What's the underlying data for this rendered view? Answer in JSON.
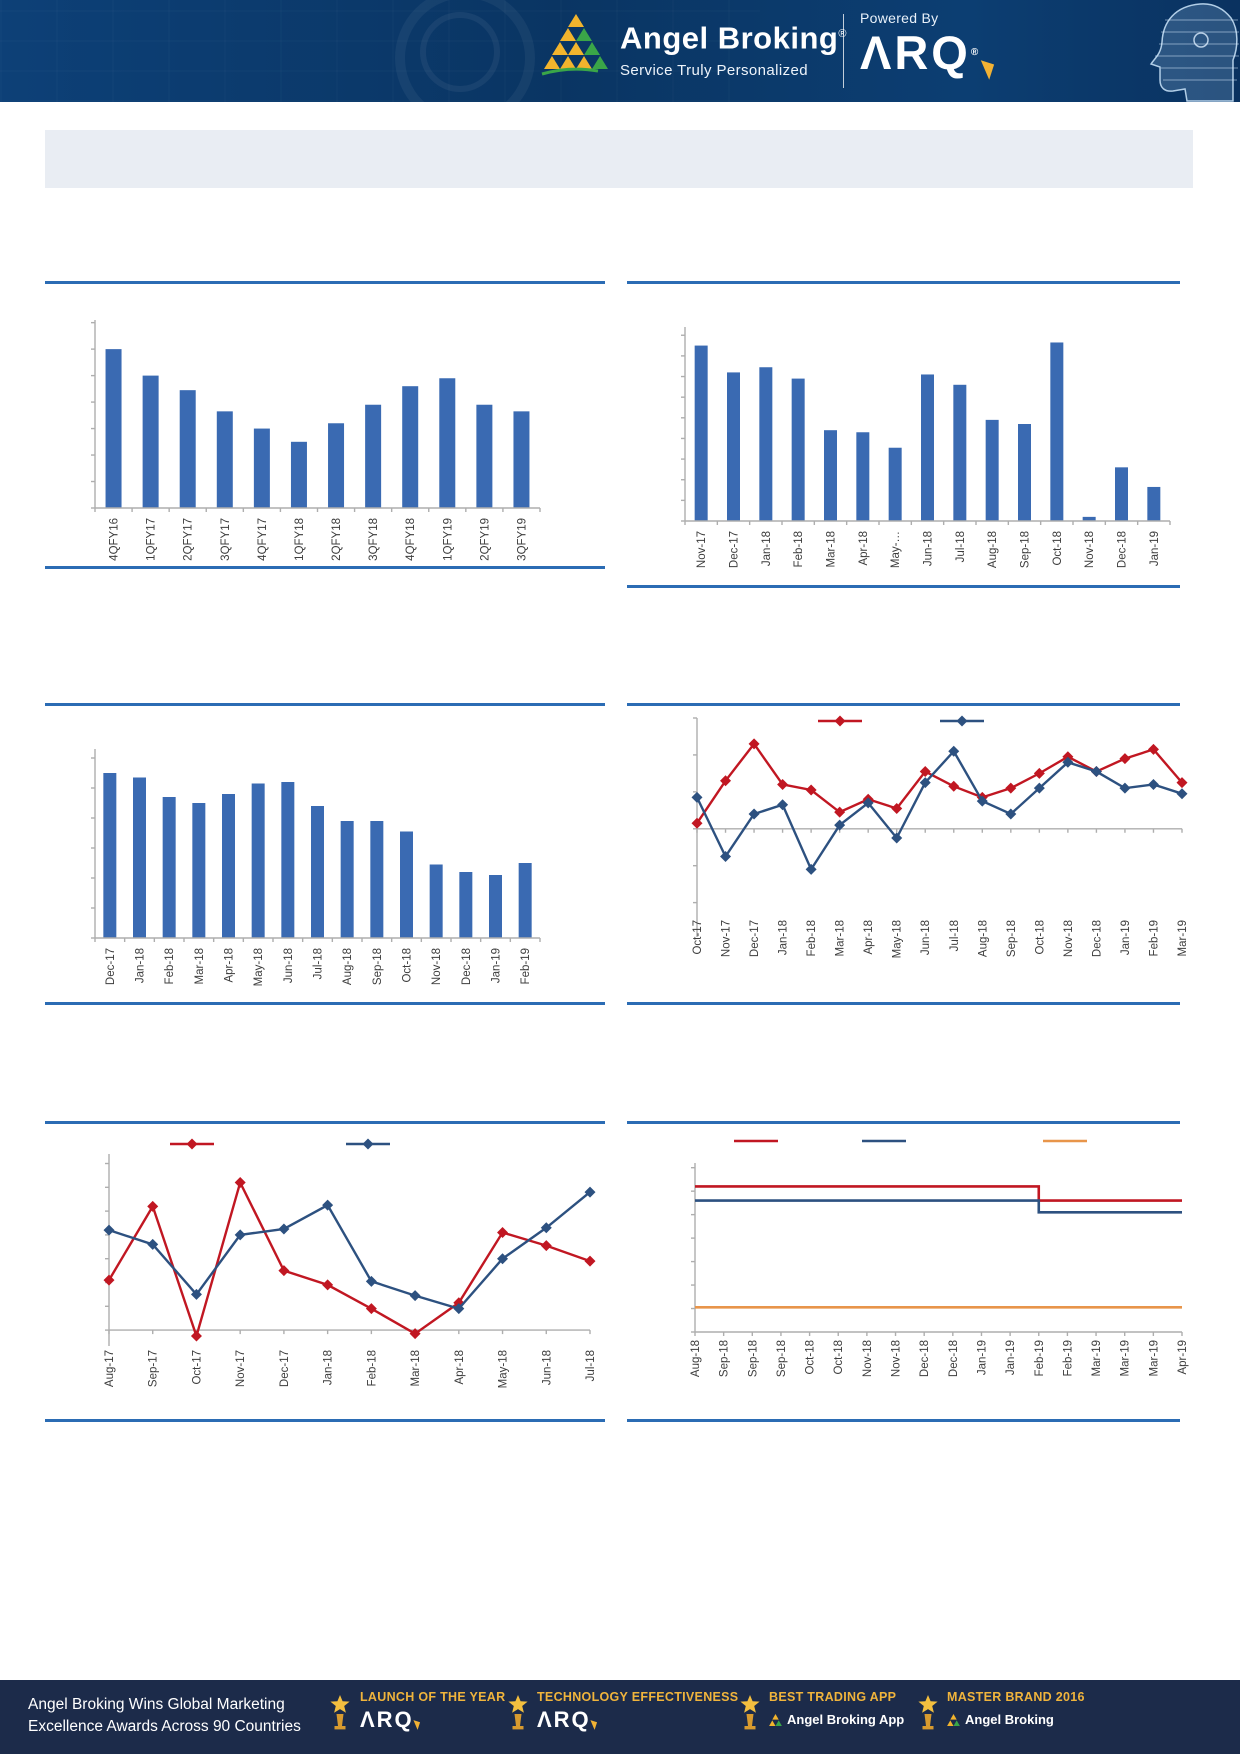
{
  "header": {
    "brand": "Angel Broking",
    "brand_mark": "®",
    "tagline": "Service Truly Personalized",
    "powered_by": "Powered By",
    "arq_logo": "ΛRQ",
    "arq_mark": "®"
  },
  "banner": {
    "text": ""
  },
  "colors": {
    "bar": "#3a6ab2",
    "red": "#c11722",
    "blue": "#2d5180",
    "orange": "#e8954a",
    "rule": "#2b6cb4",
    "axis": "#aeaeae",
    "label": "#3d3d3d",
    "header_bg": "#0c3e72",
    "footer_bg": "#1c2b4a",
    "gold": "#f0b43c",
    "banner_bg": "#e9edf3",
    "logo_yellow": "#f2b42d",
    "logo_green": "#3aa648"
  },
  "chart_data": [
    {
      "id": "quarterly-bar-chart",
      "type": "bar",
      "title": "",
      "categories": [
        "4QFY16",
        "1QFY17",
        "2QFY17",
        "3QFY17",
        "4QFY17",
        "1QFY18",
        "2QFY18",
        "3QFY18",
        "4QFY18",
        "1QFY19",
        "2QFY19",
        "3QFY19"
      ],
      "series": [
        {
          "name": "series_blue",
          "color": "#3a6ab2",
          "values": [
            6.0,
            5.0,
            4.45,
            3.65,
            3.0,
            2.5,
            3.2,
            3.9,
            4.6,
            4.9,
            3.9,
            3.65
          ]
        }
      ],
      "xlabel": "",
      "ylabel": "",
      "ylim": [
        0,
        7.1
      ],
      "grid": false,
      "legend": null
    },
    {
      "id": "monthly-bar-chart-1",
      "type": "bar",
      "title": "",
      "categories": [
        "Nov-17",
        "Dec-17",
        "Jan-18",
        "Feb-18",
        "Mar-18",
        "Apr-18",
        "May-…",
        "Jun-18",
        "Jul-18",
        "Aug-18",
        "Sep-18",
        "Oct-18",
        "Nov-18",
        "Dec-18",
        "Jan-19"
      ],
      "series": [
        {
          "name": "series_blue",
          "color": "#3a6ab2",
          "values": [
            8.5,
            7.2,
            7.45,
            6.9,
            4.4,
            4.3,
            3.55,
            7.1,
            6.6,
            4.9,
            4.7,
            8.65,
            0.2,
            2.6,
            1.65
          ]
        }
      ],
      "xlabel": "",
      "ylabel": "",
      "ylim": [
        0,
        9.4
      ],
      "grid": false,
      "legend": null
    },
    {
      "id": "monthly-bar-chart-2",
      "type": "bar",
      "title": "",
      "categories": [
        "Dec-17",
        "Jan-18",
        "Feb-18",
        "Mar-18",
        "Apr-18",
        "May-18",
        "Jun-18",
        "Jul-18",
        "Aug-18",
        "Sep-18",
        "Oct-18",
        "Nov-18",
        "Dec-18",
        "Jan-19",
        "Feb-19"
      ],
      "series": [
        {
          "name": "series_blue",
          "color": "#3a6ab2",
          "values": [
            5.5,
            5.35,
            4.7,
            4.5,
            4.8,
            5.15,
            5.2,
            4.4,
            3.9,
            3.9,
            3.55,
            2.45,
            2.2,
            2.1,
            2.5
          ]
        }
      ],
      "xlabel": "",
      "ylabel": "",
      "ylim": [
        0,
        6.3
      ],
      "grid": false,
      "legend": null
    },
    {
      "id": "monthly-two-line-chart",
      "type": "line",
      "title": "",
      "categories": [
        "Oct-17",
        "Nov-17",
        "Dec-17",
        "Jan-18",
        "Feb-18",
        "Mar-18",
        "Apr-18",
        "May-18",
        "Jun-18",
        "Jul-18",
        "Aug-18",
        "Sep-18",
        "Oct-18",
        "Nov-18",
        "Dec-18",
        "Jan-19",
        "Feb-19",
        "Mar-19"
      ],
      "series": [
        {
          "name": "series_red",
          "color": "#c11722",
          "marker": "diamond",
          "values": [
            0.15,
            1.3,
            2.3,
            1.2,
            1.05,
            0.45,
            0.8,
            0.55,
            1.55,
            1.15,
            0.85,
            1.1,
            1.5,
            1.95,
            1.55,
            1.9,
            2.15,
            1.25
          ]
        },
        {
          "name": "series_blue",
          "color": "#2d5180",
          "marker": "diamond",
          "values": [
            0.85,
            -0.75,
            0.4,
            0.65,
            -1.1,
            0.1,
            0.7,
            -0.25,
            1.25,
            2.1,
            0.75,
            0.4,
            1.1,
            1.8,
            1.55,
            1.1,
            1.2,
            0.95
          ]
        }
      ],
      "xlabel": "",
      "ylabel": "",
      "ylim": [
        -2.2,
        3.0
      ],
      "grid": false,
      "legend": {
        "position": "top",
        "entries": [
          {
            "color": "#c11722",
            "label": ""
          },
          {
            "color": "#2d5180",
            "label": ""
          }
        ]
      }
    },
    {
      "id": "monthly-two-line-chart-2",
      "type": "line",
      "title": "",
      "categories": [
        "Aug-17",
        "Sep-17",
        "Oct-17",
        "Nov-17",
        "Dec-17",
        "Jan-18",
        "Feb-18",
        "Mar-18",
        "Apr-18",
        "May-18",
        "Jun-18",
        "Jul-18"
      ],
      "series": [
        {
          "name": "series_red",
          "color": "#c11722",
          "marker": "diamond",
          "values": [
            2.1,
            5.2,
            -0.25,
            6.2,
            2.5,
            1.9,
            0.9,
            -0.15,
            1.15,
            4.1,
            3.55,
            2.9
          ]
        },
        {
          "name": "series_blue",
          "color": "#2d5180",
          "marker": "diamond",
          "values": [
            4.2,
            3.6,
            1.5,
            4.0,
            4.25,
            5.25,
            2.05,
            1.45,
            0.9,
            3.0,
            4.3,
            5.8
          ]
        }
      ],
      "xlabel": "",
      "ylabel": "",
      "ylim": [
        -0.5,
        7.4
      ],
      "grid": false,
      "legend": {
        "position": "top",
        "entries": [
          {
            "color": "#c11722",
            "label": ""
          },
          {
            "color": "#2d5180",
            "label": ""
          }
        ]
      }
    },
    {
      "id": "weekly-three-line-step-chart",
      "type": "line",
      "step": true,
      "title": "",
      "categories": [
        "Aug-18",
        "Sep-18",
        "Sep-18",
        "Sep-18",
        "Oct-18",
        "Oct-18",
        "Nov-18",
        "Nov-18",
        "Dec-18",
        "Dec-18",
        "Jan-19",
        "Jan-19",
        "Feb-19",
        "Feb-19",
        "Mar-19",
        "Mar-19",
        "Mar-19",
        "Apr-19"
      ],
      "series": [
        {
          "name": "series_red",
          "color": "#c11722",
          "marker": null,
          "values": [
            6.2,
            6.2,
            6.2,
            6.2,
            6.2,
            6.2,
            6.2,
            6.2,
            6.2,
            6.2,
            6.2,
            6.2,
            6.2,
            5.6,
            5.6,
            5.6,
            5.6,
            5.6
          ]
        },
        {
          "name": "series_blue",
          "color": "#2d5180",
          "marker": null,
          "values": [
            5.6,
            5.6,
            5.6,
            5.6,
            5.6,
            5.6,
            5.6,
            5.6,
            5.6,
            5.6,
            5.6,
            5.6,
            5.6,
            5.1,
            5.1,
            5.1,
            5.1,
            5.1
          ]
        },
        {
          "name": "series_orange",
          "color": "#e8954a",
          "marker": null,
          "values": [
            1.05,
            1.05,
            1.05,
            1.05,
            1.05,
            1.05,
            1.05,
            1.05,
            1.05,
            1.05,
            1.05,
            1.05,
            1.05,
            1.05,
            1.05,
            1.05,
            1.05,
            1.05
          ]
        }
      ],
      "xlabel": "",
      "ylabel": "",
      "ylim": [
        0,
        7.2
      ],
      "grid": false,
      "legend": {
        "position": "top",
        "entries": [
          {
            "color": "#c11722",
            "label": ""
          },
          {
            "color": "#2d5180",
            "label": ""
          },
          {
            "color": "#e8954a",
            "label": ""
          }
        ]
      }
    }
  ],
  "footer": {
    "left_line1": "Angel Broking Wins Global Marketing",
    "left_line2": "Excellence Awards Across 90 Countries",
    "awards": [
      {
        "title": "LAUNCH OF THE YEAR",
        "subtitle": "ΛRQ"
      },
      {
        "title": "TECHNOLOGY EFFECTIVENESS",
        "subtitle": "ΛRQ"
      },
      {
        "title": "BEST TRADING APP",
        "subtitle": "Angel Broking App"
      },
      {
        "title": "MASTER BRAND 2016",
        "subtitle": "Angel Broking"
      }
    ]
  }
}
